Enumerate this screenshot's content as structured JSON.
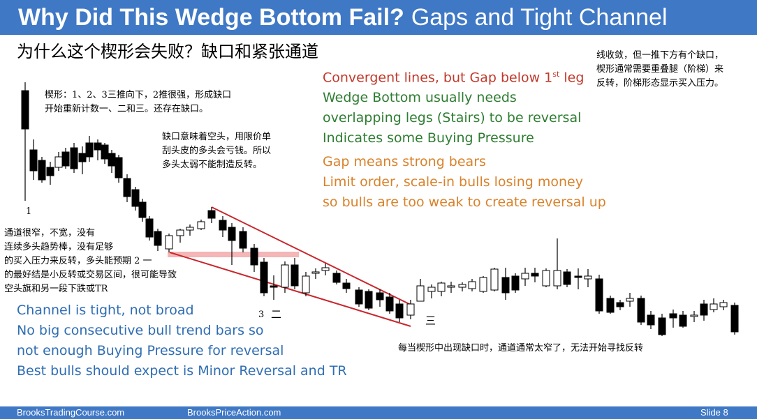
{
  "title": {
    "bold": "Why Did This Wedge Bottom Fail?",
    "normal": "Gaps and Tight Channel"
  },
  "subtitle": "为什么这个楔形会失败？缺口和紧张通道",
  "notes_cn": {
    "top_left_1": "楔形：1、2、3三推向下，2推很强，形成缺口",
    "top_left_2": "开始重新计数一、二和三。还存在缺口。",
    "gap_1": "缺口意味着空头，用限价单",
    "gap_2": "刮头皮的多头会亏钱。所以",
    "gap_3": "多头太弱不能制造反转。",
    "right_1": "线收敛，但一推下方有个缺口，",
    "right_2": "楔形通常需要重叠腿（阶梯）来",
    "right_3": "反转，阶梯形态显示买入压力。",
    "channel_1": "通道很窄，不宽，没有",
    "channel_2": "连续多头趋势棒，没有足够",
    "channel_3": "的买入压力来反转，多头能预期 2 一",
    "channel_4": "的最好结是小反转或交易区间，很可能导致",
    "channel_5": "空头旗和另一段下跌或TR",
    "bottom_right": "每当楔形中出现缺口时，通道通常太窄了，无法开始寻找反转"
  },
  "notes_en": {
    "convergent_a": "Convergent lines, but Gap below 1",
    "convergent_sup": "st",
    "convergent_b": " leg",
    "wedge_1": "Wedge Bottom usually needs",
    "wedge_2": "overlapping legs (Stairs) to be reversal",
    "wedge_3": "Indicates some Buying Pressure",
    "gap_1": "Gap means strong bears",
    "gap_2": "Limit order, scale-in bulls losing money",
    "gap_3": "so bulls are too weak to create reversal up",
    "channel_1": "Channel is tight, not broad",
    "channel_2": "No big consecutive bull trend bars so",
    "channel_3": "not enough Buying Pressure for reversal",
    "channel_4": "Best bulls should expect is Minor Reversal and TR"
  },
  "labels": {
    "one": "1",
    "three": "3",
    "er": "二",
    "san": "三"
  },
  "footer": {
    "left": "BrooksTradingCourse.com",
    "mid": "BrooksPriceAction.com",
    "slide": "Slide  8"
  },
  "colors": {
    "title_bar": "#3f78c5",
    "red": "#c0392b",
    "green": "#2e7d32",
    "orange": "#d9822b",
    "blue": "#2f6db3",
    "gap_band": "#f4b6b6"
  }
}
